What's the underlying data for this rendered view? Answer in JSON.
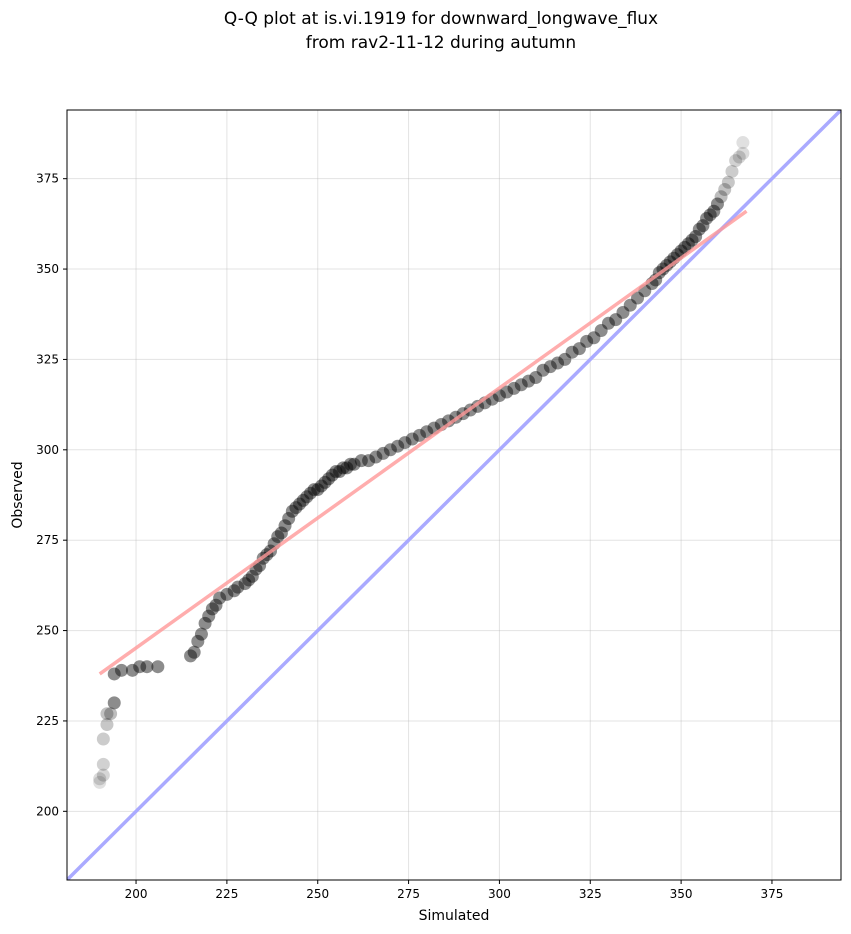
{
  "chart_data": {
    "type": "scatter",
    "title_lines": [
      "Q-Q plot at is.vi.1919 for downward_longwave_flux",
      "from rav2-11-12 during autumn"
    ],
    "xlabel": "Simulated",
    "ylabel": "Observed",
    "xlim": [
      181,
      394
    ],
    "ylim": [
      181,
      394
    ],
    "xticks": [
      200,
      225,
      250,
      275,
      300,
      325,
      350,
      375
    ],
    "yticks": [
      200,
      225,
      250,
      275,
      300,
      325,
      350,
      375
    ],
    "grid": true,
    "identity_line": {
      "color": "#aaaaff",
      "from": [
        181,
        181
      ],
      "to": [
        394,
        394
      ]
    },
    "fit_line": {
      "color": "#ff9999",
      "from": [
        190,
        238
      ],
      "to": [
        368,
        366
      ]
    },
    "points_color": "#000000",
    "quantiles": [
      [
        190,
        208
      ],
      [
        190,
        209
      ],
      [
        191,
        210
      ],
      [
        191,
        213
      ],
      [
        191,
        220
      ],
      [
        192,
        224
      ],
      [
        192,
        227
      ],
      [
        193,
        227
      ],
      [
        194,
        230
      ],
      [
        194,
        238
      ],
      [
        196,
        239
      ],
      [
        199,
        239
      ],
      [
        201,
        240
      ],
      [
        203,
        240
      ],
      [
        206,
        240
      ],
      [
        215,
        243
      ],
      [
        216,
        244
      ],
      [
        217,
        247
      ],
      [
        218,
        249
      ],
      [
        219,
        252
      ],
      [
        220,
        254
      ],
      [
        221,
        256
      ],
      [
        222,
        257
      ],
      [
        223,
        259
      ],
      [
        225,
        260
      ],
      [
        227,
        261
      ],
      [
        228,
        262
      ],
      [
        230,
        263
      ],
      [
        231,
        264
      ],
      [
        232,
        265
      ],
      [
        233,
        267
      ],
      [
        234,
        268
      ],
      [
        235,
        270
      ],
      [
        236,
        271
      ],
      [
        237,
        272
      ],
      [
        238,
        274
      ],
      [
        239,
        276
      ],
      [
        240,
        277
      ],
      [
        241,
        279
      ],
      [
        242,
        281
      ],
      [
        243,
        283
      ],
      [
        244,
        284
      ],
      [
        245,
        285
      ],
      [
        246,
        286
      ],
      [
        247,
        287
      ],
      [
        248,
        288
      ],
      [
        249,
        289
      ],
      [
        250,
        289
      ],
      [
        251,
        290
      ],
      [
        252,
        291
      ],
      [
        253,
        292
      ],
      [
        254,
        293
      ],
      [
        255,
        294
      ],
      [
        256,
        294
      ],
      [
        257,
        295
      ],
      [
        258,
        295
      ],
      [
        259,
        296
      ],
      [
        260,
        296
      ],
      [
        262,
        297
      ],
      [
        264,
        297
      ],
      [
        266,
        298
      ],
      [
        268,
        299
      ],
      [
        270,
        300
      ],
      [
        272,
        301
      ],
      [
        274,
        302
      ],
      [
        276,
        303
      ],
      [
        278,
        304
      ],
      [
        280,
        305
      ],
      [
        282,
        306
      ],
      [
        284,
        307
      ],
      [
        286,
        308
      ],
      [
        288,
        309
      ],
      [
        290,
        310
      ],
      [
        292,
        311
      ],
      [
        294,
        312
      ],
      [
        296,
        313
      ],
      [
        298,
        314
      ],
      [
        300,
        315
      ],
      [
        302,
        316
      ],
      [
        304,
        317
      ],
      [
        306,
        318
      ],
      [
        308,
        319
      ],
      [
        310,
        320
      ],
      [
        312,
        322
      ],
      [
        314,
        323
      ],
      [
        316,
        324
      ],
      [
        318,
        325
      ],
      [
        320,
        327
      ],
      [
        322,
        328
      ],
      [
        324,
        330
      ],
      [
        326,
        331
      ],
      [
        328,
        333
      ],
      [
        330,
        335
      ],
      [
        332,
        336
      ],
      [
        334,
        338
      ],
      [
        336,
        340
      ],
      [
        338,
        342
      ],
      [
        340,
        344
      ],
      [
        342,
        346
      ],
      [
        343,
        347
      ],
      [
        344,
        349
      ],
      [
        345,
        350
      ],
      [
        346,
        351
      ],
      [
        347,
        352
      ],
      [
        348,
        353
      ],
      [
        349,
        354
      ],
      [
        350,
        355
      ],
      [
        351,
        356
      ],
      [
        352,
        357
      ],
      [
        353,
        358
      ],
      [
        354,
        359
      ],
      [
        355,
        361
      ],
      [
        356,
        362
      ],
      [
        357,
        364
      ],
      [
        358,
        365
      ],
      [
        359,
        366
      ],
      [
        360,
        368
      ],
      [
        361,
        370
      ],
      [
        362,
        372
      ],
      [
        363,
        374
      ],
      [
        364,
        377
      ],
      [
        365,
        380
      ],
      [
        366,
        381
      ],
      [
        367,
        382
      ],
      [
        367,
        385
      ]
    ]
  }
}
